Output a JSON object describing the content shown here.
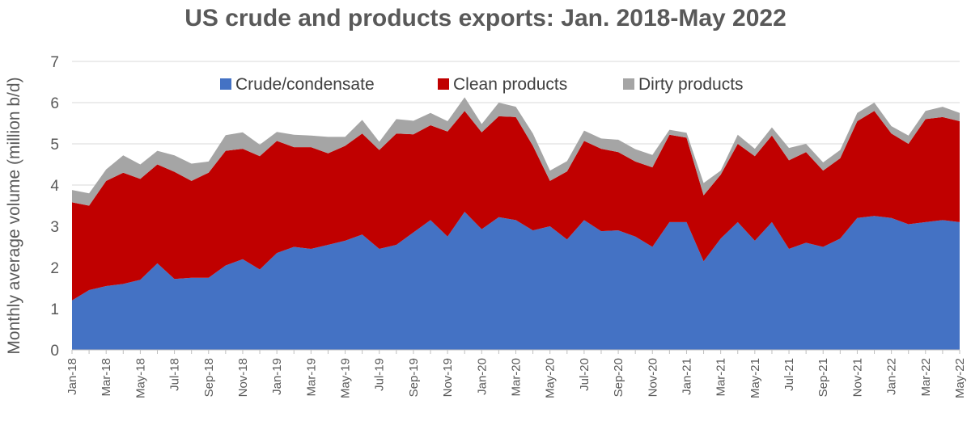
{
  "chart_data": {
    "type": "area",
    "stacked": true,
    "title": "US crude and products exports: Jan. 2018-May 2022",
    "ylabel": "Monthly average volume (million b/d)",
    "xlabel": "",
    "ylim": [
      0,
      7
    ],
    "yticks": [
      0,
      1,
      2,
      3,
      4,
      5,
      6,
      7
    ],
    "grid": true,
    "legend_position": "top-center",
    "categories": [
      "Jan-18",
      "Feb-18",
      "Mar-18",
      "Apr-18",
      "May-18",
      "Jun-18",
      "Jul-18",
      "Aug-18",
      "Sep-18",
      "Oct-18",
      "Nov-18",
      "Dec-18",
      "Jan-19",
      "Feb-19",
      "Mar-19",
      "Apr-19",
      "May-19",
      "Jun-19",
      "Jul-19",
      "Aug-19",
      "Sep-19",
      "Oct-19",
      "Nov-19",
      "Dec-19",
      "Jan-20",
      "Feb-20",
      "Mar-20",
      "Apr-20",
      "May-20",
      "Jun-20",
      "Jul-20",
      "Aug-20",
      "Sep-20",
      "Oct-20",
      "Nov-20",
      "Dec-20",
      "Jan-21",
      "Feb-21",
      "Mar-21",
      "Apr-21",
      "May-21",
      "Jun-21",
      "Jul-21",
      "Aug-21",
      "Sep-21",
      "Oct-21",
      "Nov-21",
      "Dec-21",
      "Jan-22",
      "Feb-22",
      "Mar-22",
      "Apr-22",
      "May-22"
    ],
    "x_tick_labels": [
      "Jan-18",
      "Mar-18",
      "May-18",
      "Jul-18",
      "Sep-18",
      "Nov-18",
      "Jan-19",
      "Mar-19",
      "May-19",
      "Jul-19",
      "Sep-19",
      "Nov-19",
      "Jan-20",
      "Mar-20",
      "May-20",
      "Jul-20",
      "Sep-20",
      "Nov-20",
      "Jan-21",
      "Mar-21",
      "May-21",
      "Jul-21",
      "Sep-21",
      "Nov-21",
      "Jan-22",
      "Mar-22",
      "May-22"
    ],
    "series": [
      {
        "name": "Crude/condensate",
        "color": "#4472c4",
        "values": [
          1.2,
          1.45,
          1.55,
          1.6,
          1.7,
          2.1,
          1.72,
          1.75,
          1.75,
          2.05,
          2.2,
          1.95,
          2.35,
          2.5,
          2.45,
          2.55,
          2.65,
          2.8,
          2.45,
          2.55,
          2.85,
          3.15,
          2.75,
          3.35,
          2.93,
          3.22,
          3.15,
          2.9,
          3.0,
          2.68,
          3.15,
          2.88,
          2.9,
          2.75,
          2.5,
          3.1,
          3.1,
          2.15,
          2.7,
          3.1,
          2.65,
          3.1,
          2.45,
          2.6,
          2.5,
          2.7,
          3.2,
          3.25,
          3.2,
          3.05,
          3.1,
          3.15,
          3.1
        ]
      },
      {
        "name": "Clean products",
        "color": "#c00000",
        "values": [
          2.38,
          2.05,
          2.55,
          2.7,
          2.45,
          2.4,
          2.6,
          2.35,
          2.55,
          2.78,
          2.68,
          2.75,
          2.72,
          2.42,
          2.47,
          2.22,
          2.3,
          2.45,
          2.4,
          2.7,
          2.38,
          2.3,
          2.55,
          2.45,
          2.35,
          2.45,
          2.5,
          2.05,
          1.1,
          1.65,
          1.92,
          2.0,
          1.9,
          1.82,
          1.93,
          2.12,
          2.05,
          1.6,
          1.55,
          1.9,
          2.05,
          2.1,
          2.15,
          2.2,
          1.85,
          1.95,
          2.35,
          2.55,
          2.05,
          1.95,
          2.5,
          2.5,
          2.45
        ]
      },
      {
        "name": "Dirty products",
        "color": "#a5a5a5",
        "values": [
          0.3,
          0.3,
          0.28,
          0.42,
          0.35,
          0.33,
          0.4,
          0.42,
          0.27,
          0.38,
          0.4,
          0.28,
          0.22,
          0.3,
          0.28,
          0.4,
          0.22,
          0.33,
          0.2,
          0.35,
          0.33,
          0.3,
          0.25,
          0.33,
          0.2,
          0.33,
          0.25,
          0.3,
          0.25,
          0.25,
          0.25,
          0.25,
          0.3,
          0.3,
          0.3,
          0.12,
          0.12,
          0.3,
          0.1,
          0.22,
          0.18,
          0.2,
          0.3,
          0.2,
          0.2,
          0.2,
          0.2,
          0.2,
          0.18,
          0.2,
          0.2,
          0.25,
          0.2
        ]
      }
    ]
  }
}
